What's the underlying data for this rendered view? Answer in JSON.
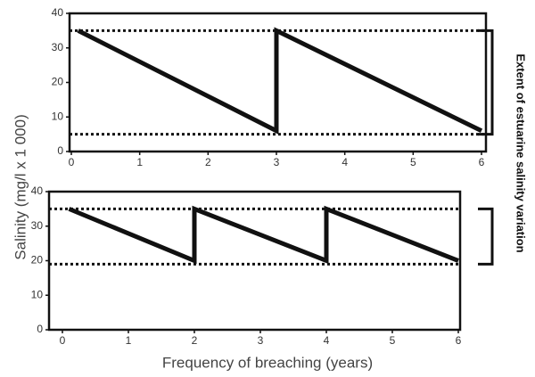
{
  "ylabel": "Salinity (mg/l x 1 000)",
  "xlabel": "Frequency of breaching (years)",
  "annotation": "Extent of estuarine salinity variation",
  "chart_data": [
    {
      "type": "line",
      "x": [
        0.1,
        3,
        3,
        6
      ],
      "values": [
        35,
        6,
        35,
        6
      ],
      "color": "#111111",
      "reference_lines": [
        35,
        5
      ],
      "xlim": [
        0,
        6
      ],
      "xticks": [
        0,
        1,
        2,
        3,
        4,
        5,
        6
      ],
      "ylim": [
        0,
        40
      ],
      "yticks": [
        0,
        10,
        20,
        30,
        40
      ]
    },
    {
      "type": "line",
      "x": [
        0.1,
        2,
        2,
        4,
        4,
        6
      ],
      "values": [
        35,
        20,
        35,
        20,
        35,
        20
      ],
      "color": "#111111",
      "reference_lines": [
        35,
        19
      ],
      "xlim": [
        0,
        6
      ],
      "xticks": [
        0,
        1,
        2,
        3,
        4,
        5,
        6
      ],
      "ylim": [
        0,
        40
      ],
      "yticks": [
        0,
        10,
        20,
        30,
        40
      ]
    }
  ]
}
